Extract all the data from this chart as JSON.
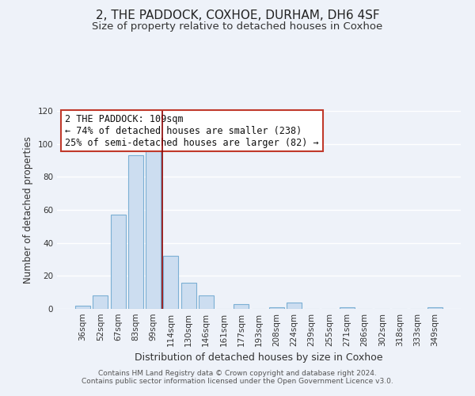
{
  "title": "2, THE PADDOCK, COXHOE, DURHAM, DH6 4SF",
  "subtitle": "Size of property relative to detached houses in Coxhoe",
  "xlabel": "Distribution of detached houses by size in Coxhoe",
  "ylabel": "Number of detached properties",
  "bar_color": "#ccddf0",
  "bar_edge_color": "#7bafd4",
  "categories": [
    "36sqm",
    "52sqm",
    "67sqm",
    "83sqm",
    "99sqm",
    "114sqm",
    "130sqm",
    "146sqm",
    "161sqm",
    "177sqm",
    "193sqm",
    "208sqm",
    "224sqm",
    "239sqm",
    "255sqm",
    "271sqm",
    "286sqm",
    "302sqm",
    "318sqm",
    "333sqm",
    "349sqm"
  ],
  "values": [
    2,
    8,
    57,
    93,
    96,
    32,
    16,
    8,
    0,
    3,
    0,
    1,
    4,
    0,
    0,
    1,
    0,
    0,
    0,
    0,
    1
  ],
  "ylim": [
    0,
    120
  ],
  "yticks": [
    0,
    20,
    40,
    60,
    80,
    100,
    120
  ],
  "vline_color": "#8b0000",
  "annotation_title": "2 THE PADDOCK: 109sqm",
  "annotation_line1": "← 74% of detached houses are smaller (238)",
  "annotation_line2": "25% of semi-detached houses are larger (82) →",
  "footer1": "Contains HM Land Registry data © Crown copyright and database right 2024.",
  "footer2": "Contains public sector information licensed under the Open Government Licence v3.0.",
  "background_color": "#eef2f9",
  "grid_color": "#ffffff",
  "title_fontsize": 11,
  "subtitle_fontsize": 9.5,
  "tick_fontsize": 7.5,
  "ylabel_fontsize": 8.5,
  "xlabel_fontsize": 9,
  "footer_fontsize": 6.5,
  "annot_fontsize": 8.5
}
